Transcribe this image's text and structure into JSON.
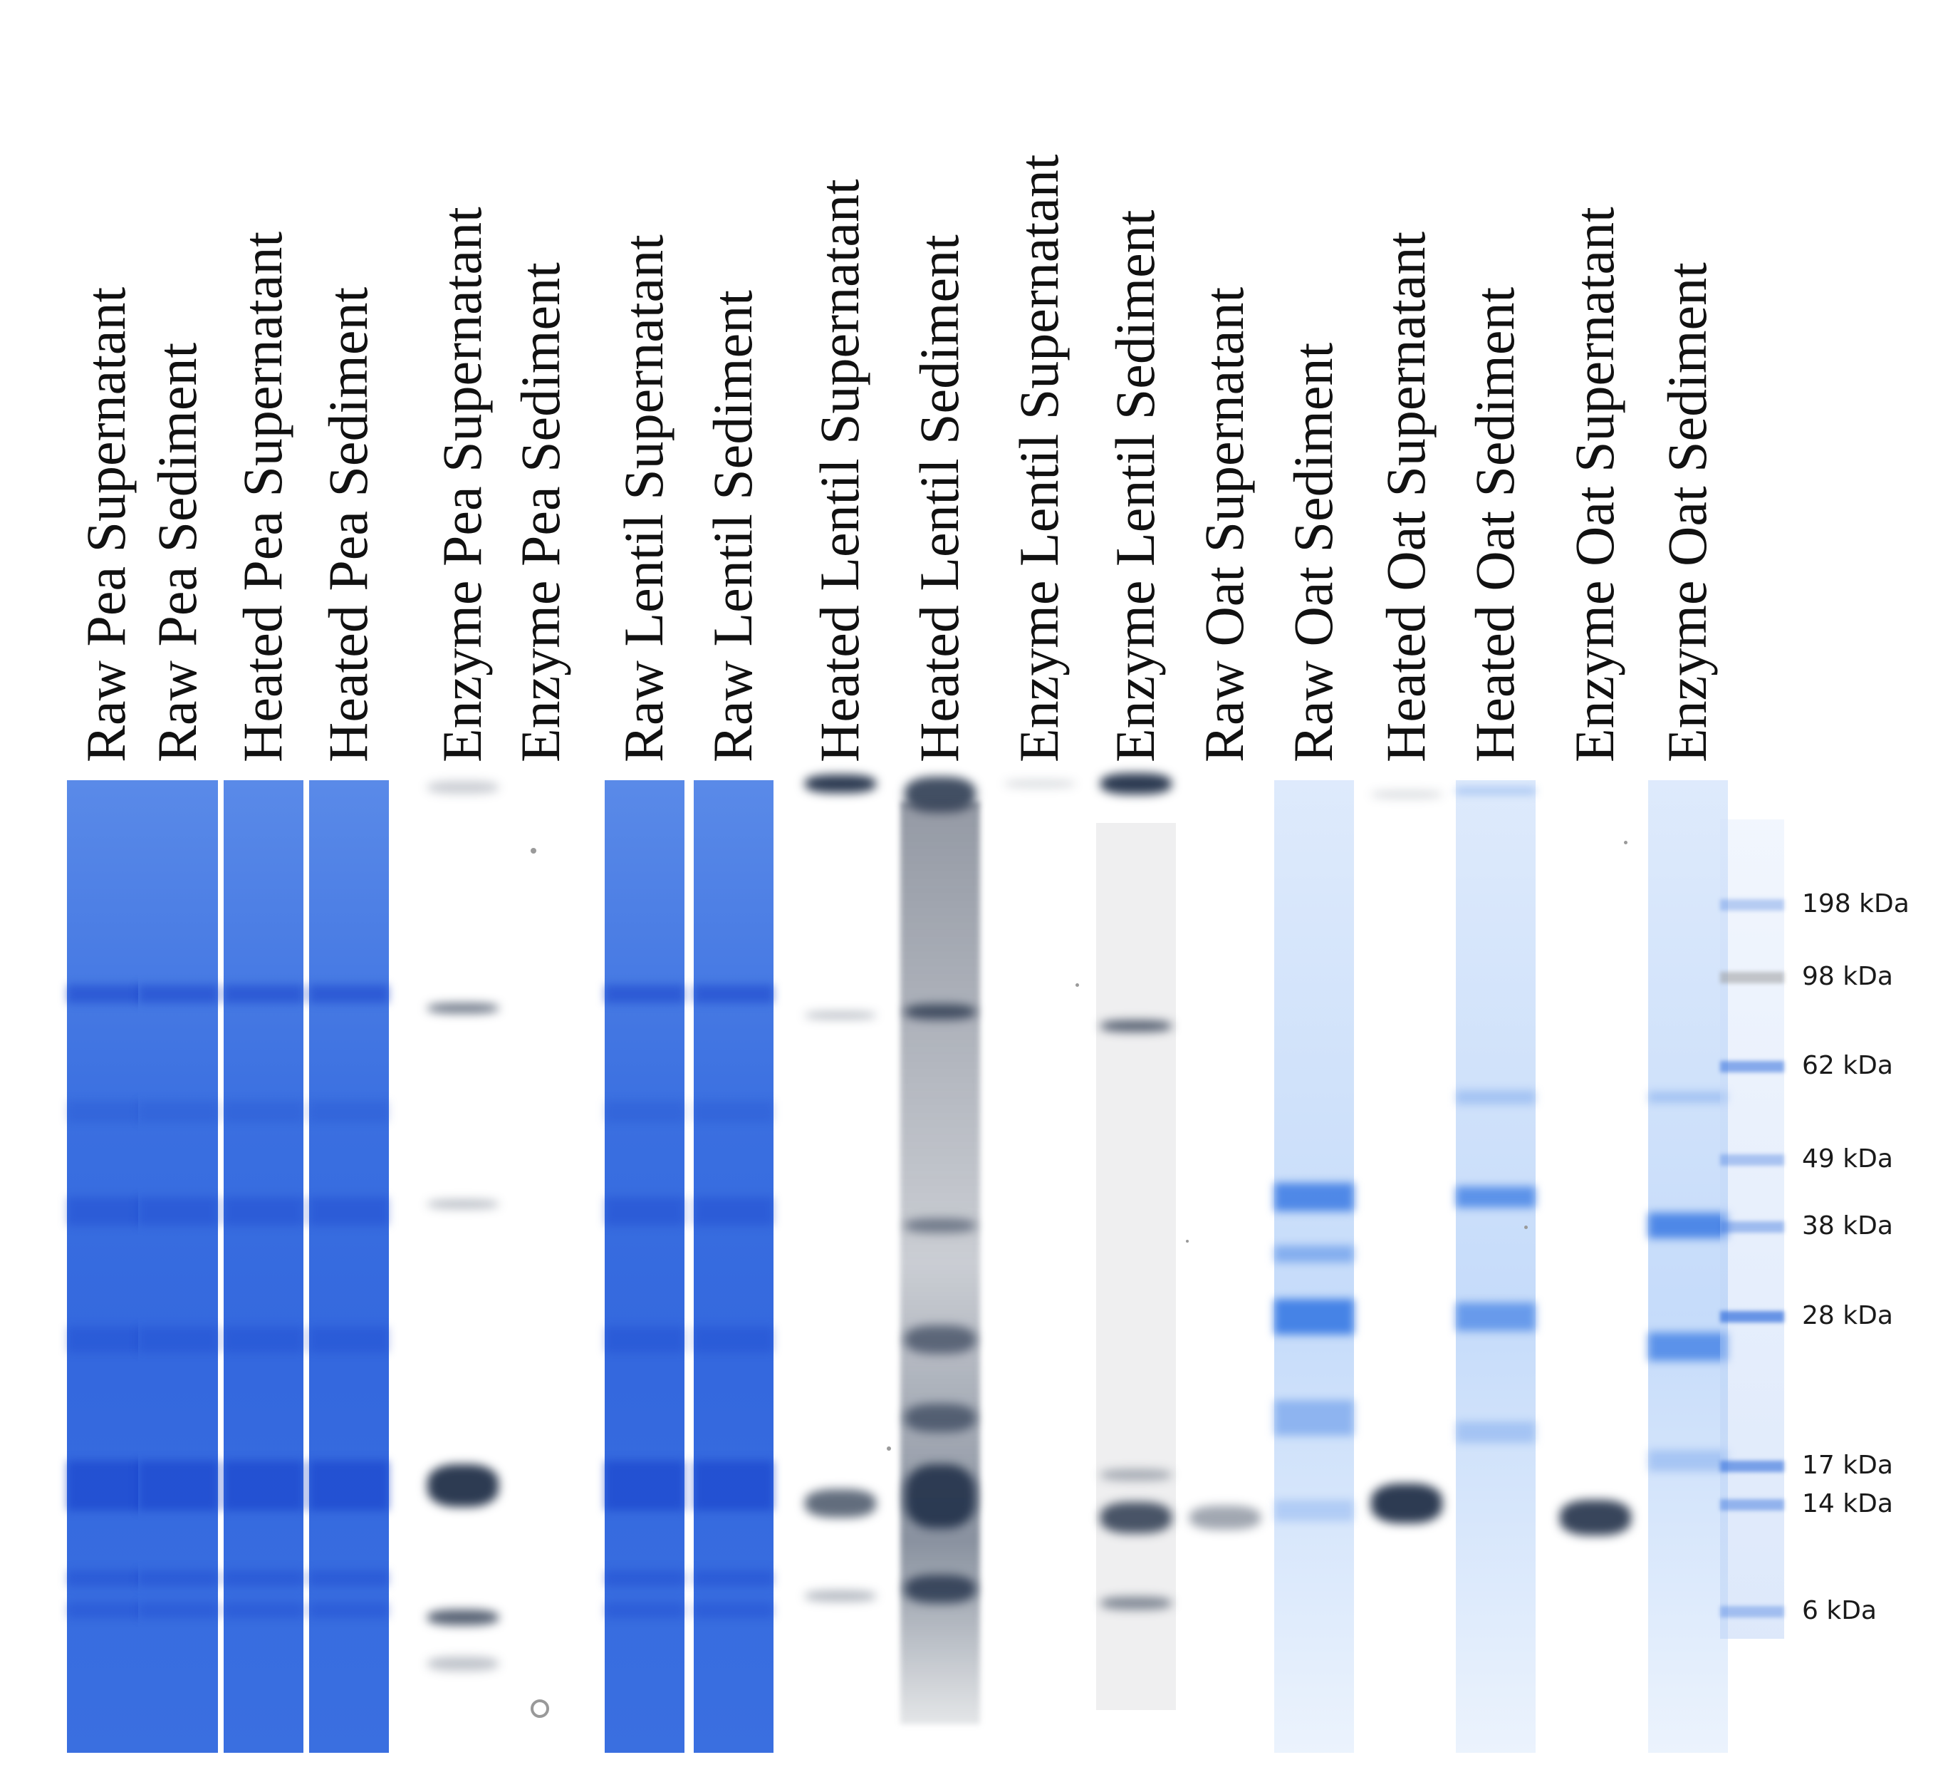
{
  "lanes": [
    {
      "label": "Raw Pea Supernatant",
      "stain": "blue"
    },
    {
      "label": "Raw Pea Sediment",
      "stain": "blue"
    },
    {
      "label": "Heated Pea Supernatant",
      "stain": "blue"
    },
    {
      "label": "Heated Pea Sediment",
      "stain": "blue"
    },
    {
      "label": "Enzyme Pea Supernatant",
      "stain": "grey"
    },
    {
      "label": "Enzyme Pea Sediment",
      "stain": "grey"
    },
    {
      "label": "Raw Lentil Supernatant",
      "stain": "blue"
    },
    {
      "label": "Raw Lentil Sediment",
      "stain": "blue"
    },
    {
      "label": "Heated Lentil Supernatant",
      "stain": "grey"
    },
    {
      "label": "Heated Lentil Sediment",
      "stain": "grey"
    },
    {
      "label": "Enzyme Lentil Supernatant",
      "stain": "grey"
    },
    {
      "label": "Enzyme Lentil Sediment",
      "stain": "grey"
    },
    {
      "label": "Raw Oat Supernatant",
      "stain": "grey"
    },
    {
      "label": "Raw Oat Sediment",
      "stain": "lightblue"
    },
    {
      "label": "Heated Oat Supernatant",
      "stain": "grey"
    },
    {
      "label": "Heated Oat Sediment",
      "stain": "lightblue"
    },
    {
      "label": "Enzyme Oat Supernatant",
      "stain": "grey"
    },
    {
      "label": "Enzyme Oat Sediment",
      "stain": "lightblue"
    }
  ],
  "markers": [
    "198 kDa",
    "98 kDa",
    "62 kDa",
    "49 kDa",
    "38 kDa",
    "28 kDa",
    "17 kDa",
    "14 kDa",
    "6 kDa"
  ],
  "colors": {
    "coomassie": "#3a6fe0",
    "coomassie_dark": "#1f4fd8",
    "silver": "#16263f",
    "light_blue": "#9cc0f2",
    "background": "#ffffff"
  }
}
